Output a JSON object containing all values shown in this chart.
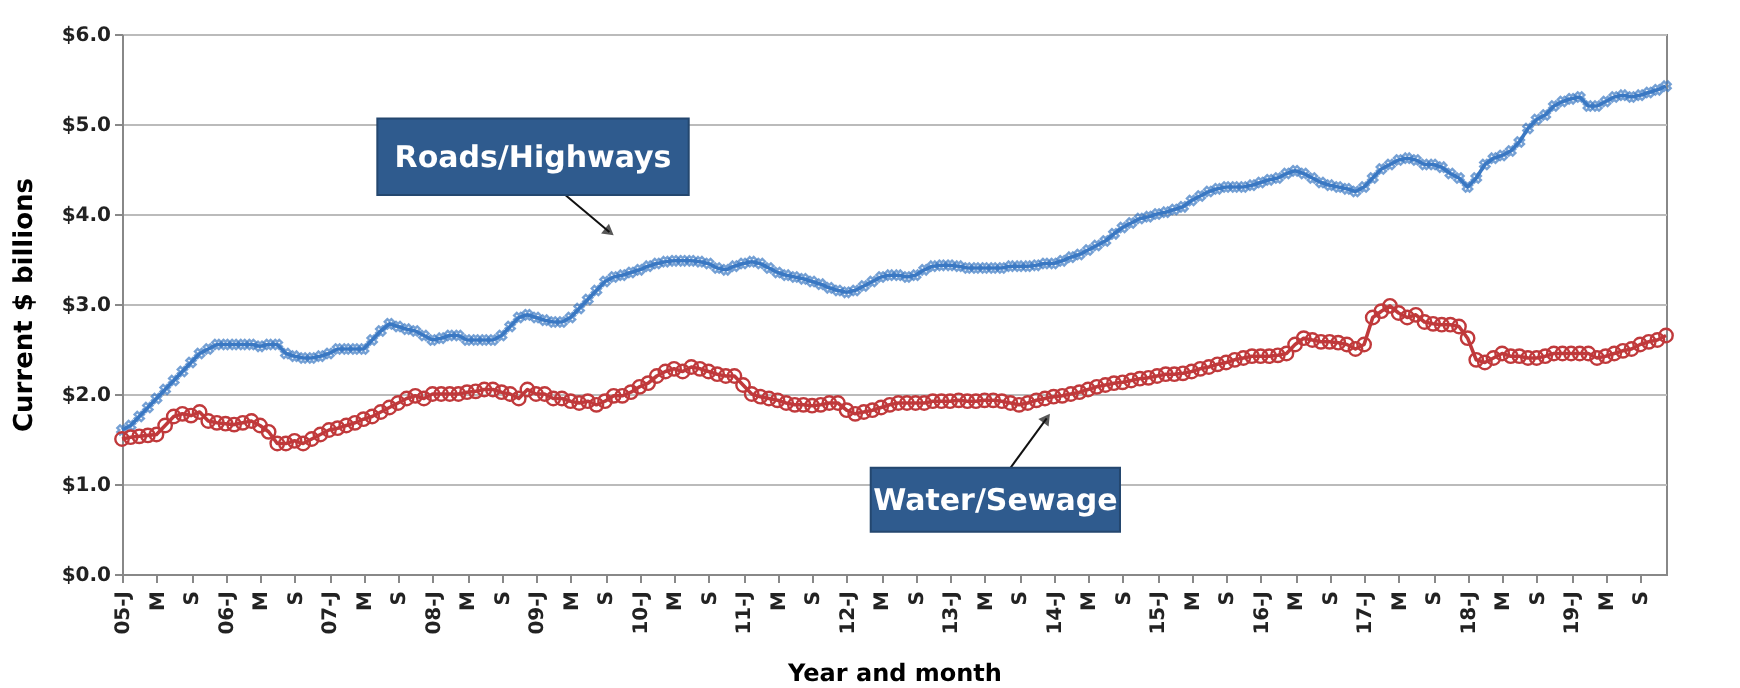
{
  "chart_data": {
    "type": "line",
    "xlabel": "Year and month",
    "ylabel": "Current $ billions",
    "categories": [
      "05-J",
      null,
      null,
      null,
      "M",
      null,
      null,
      null,
      "S",
      null,
      null,
      null,
      "06-J",
      null,
      null,
      null,
      "M",
      null,
      null,
      null,
      "S",
      null,
      null,
      null,
      "07-J",
      null,
      null,
      null,
      "M",
      null,
      null,
      null,
      "S",
      null,
      null,
      null,
      "08-J",
      null,
      null,
      null,
      "M",
      null,
      null,
      null,
      "S",
      null,
      null,
      null,
      "09-J",
      null,
      null,
      null,
      "M",
      null,
      null,
      null,
      "S",
      null,
      null,
      null,
      "10-J",
      null,
      null,
      null,
      "M",
      null,
      null,
      null,
      "S",
      null,
      null,
      null,
      "11-J",
      null,
      null,
      null,
      "M",
      null,
      null,
      null,
      "S",
      null,
      null,
      null,
      "12-J",
      null,
      null,
      null,
      "M",
      null,
      null,
      null,
      "S",
      null,
      null,
      null,
      "13-J",
      null,
      null,
      null,
      "M",
      null,
      null,
      null,
      "S",
      null,
      null,
      null,
      "14-J",
      null,
      null,
      null,
      "M",
      null,
      null,
      null,
      "S",
      null,
      null,
      null,
      "15-J",
      null,
      null,
      null,
      "M",
      null,
      null,
      null,
      "S",
      null,
      null,
      null,
      "16-J",
      null,
      null,
      null,
      "M",
      null,
      null,
      null,
      "S",
      null,
      null,
      null,
      "17-J",
      null,
      null,
      null,
      "M",
      null,
      null,
      null,
      "S",
      null,
      null,
      null,
      "18-J",
      null,
      null,
      null,
      "M",
      null,
      null,
      null,
      "S",
      null,
      null,
      null,
      "19-J",
      null,
      null,
      null,
      "M",
      null,
      null,
      null,
      "S",
      null,
      null,
      null
    ],
    "series": [
      {
        "name": "Roads/Highways",
        "color": "#3a78c3",
        "marker": "cross",
        "values": [
          1.6,
          1.65,
          1.75,
          1.85,
          1.95,
          2.05,
          2.15,
          2.25,
          2.35,
          2.45,
          2.5,
          2.55,
          2.55,
          2.55,
          2.55,
          2.55,
          2.53,
          2.55,
          2.55,
          2.45,
          2.42,
          2.4,
          2.4,
          2.42,
          2.45,
          2.5,
          2.5,
          2.5,
          2.5,
          2.6,
          2.7,
          2.78,
          2.75,
          2.72,
          2.7,
          2.65,
          2.6,
          2.62,
          2.65,
          2.65,
          2.6,
          2.6,
          2.6,
          2.6,
          2.65,
          2.75,
          2.85,
          2.88,
          2.85,
          2.82,
          2.8,
          2.8,
          2.85,
          2.95,
          3.05,
          3.15,
          3.25,
          3.3,
          3.32,
          3.35,
          3.38,
          3.42,
          3.45,
          3.47,
          3.48,
          3.48,
          3.48,
          3.47,
          3.45,
          3.4,
          3.38,
          3.42,
          3.45,
          3.47,
          3.45,
          3.4,
          3.35,
          3.32,
          3.3,
          3.28,
          3.25,
          3.22,
          3.18,
          3.15,
          3.13,
          3.15,
          3.2,
          3.25,
          3.3,
          3.32,
          3.32,
          3.3,
          3.32,
          3.38,
          3.42,
          3.43,
          3.43,
          3.42,
          3.4,
          3.4,
          3.4,
          3.4,
          3.4,
          3.42,
          3.42,
          3.42,
          3.43,
          3.45,
          3.45,
          3.48,
          3.52,
          3.55,
          3.6,
          3.65,
          3.7,
          3.78,
          3.85,
          3.9,
          3.95,
          3.97,
          4.0,
          4.02,
          4.05,
          4.08,
          4.15,
          4.2,
          4.25,
          4.28,
          4.3,
          4.3,
          4.3,
          4.32,
          4.35,
          4.38,
          4.4,
          4.45,
          4.48,
          4.45,
          4.4,
          4.35,
          4.32,
          4.3,
          4.28,
          4.25,
          4.3,
          4.4,
          4.5,
          4.55,
          4.6,
          4.62,
          4.6,
          4.55,
          4.55,
          4.52,
          4.45,
          4.4,
          4.3,
          4.4,
          4.55,
          4.62,
          4.65,
          4.7,
          4.8,
          4.95,
          5.05,
          5.1,
          5.2,
          5.25,
          5.28,
          5.3,
          5.2,
          5.2,
          5.25,
          5.3,
          5.32,
          5.3,
          5.32,
          5.35,
          5.38,
          5.42
        ]
      },
      {
        "name": "Water/Sewage",
        "color": "#c0393b",
        "marker": "circle",
        "values": [
          1.5,
          1.52,
          1.53,
          1.54,
          1.55,
          1.65,
          1.75,
          1.78,
          1.76,
          1.8,
          1.7,
          1.68,
          1.67,
          1.66,
          1.68,
          1.7,
          1.65,
          1.58,
          1.45,
          1.45,
          1.48,
          1.45,
          1.5,
          1.55,
          1.6,
          1.62,
          1.65,
          1.68,
          1.72,
          1.75,
          1.8,
          1.85,
          1.9,
          1.95,
          1.98,
          1.95,
          2.0,
          2.0,
          2.0,
          2.0,
          2.02,
          2.03,
          2.05,
          2.05,
          2.02,
          2.0,
          1.95,
          2.05,
          2.0,
          2.0,
          1.95,
          1.95,
          1.92,
          1.9,
          1.92,
          1.88,
          1.92,
          1.98,
          1.98,
          2.02,
          2.08,
          2.12,
          2.2,
          2.25,
          2.28,
          2.25,
          2.3,
          2.28,
          2.25,
          2.22,
          2.2,
          2.2,
          2.1,
          2.0,
          1.97,
          1.95,
          1.93,
          1.9,
          1.88,
          1.88,
          1.87,
          1.88,
          1.9,
          1.9,
          1.82,
          1.78,
          1.8,
          1.82,
          1.85,
          1.88,
          1.9,
          1.9,
          1.9,
          1.9,
          1.92,
          1.92,
          1.92,
          1.93,
          1.92,
          1.92,
          1.93,
          1.93,
          1.92,
          1.9,
          1.88,
          1.9,
          1.93,
          1.95,
          1.97,
          1.98,
          2.0,
          2.02,
          2.05,
          2.08,
          2.1,
          2.12,
          2.13,
          2.15,
          2.17,
          2.18,
          2.2,
          2.22,
          2.22,
          2.23,
          2.25,
          2.28,
          2.3,
          2.33,
          2.35,
          2.38,
          2.4,
          2.42,
          2.42,
          2.42,
          2.43,
          2.45,
          2.55,
          2.62,
          2.6,
          2.58,
          2.58,
          2.57,
          2.55,
          2.5,
          2.55,
          2.85,
          2.92,
          2.98,
          2.9,
          2.85,
          2.88,
          2.8,
          2.78,
          2.77,
          2.77,
          2.75,
          2.62,
          2.38,
          2.35,
          2.4,
          2.45,
          2.42,
          2.42,
          2.4,
          2.4,
          2.42,
          2.45,
          2.45,
          2.45,
          2.45,
          2.45,
          2.4,
          2.42,
          2.45,
          2.48,
          2.5,
          2.55,
          2.58,
          2.6,
          2.65
        ]
      }
    ],
    "ylim": [
      0,
      6
    ],
    "yticks": [
      {
        "value": 0,
        "label": "$0.0"
      },
      {
        "value": 1,
        "label": "$1.0"
      },
      {
        "value": 2,
        "label": "$2.0"
      },
      {
        "value": 3,
        "label": "$3.0"
      },
      {
        "value": 4,
        "label": "$4.0"
      },
      {
        "value": 5,
        "label": "$5.0"
      },
      {
        "value": 6,
        "label": "$6.0"
      }
    ],
    "grid": "y",
    "legend": false
  }
}
